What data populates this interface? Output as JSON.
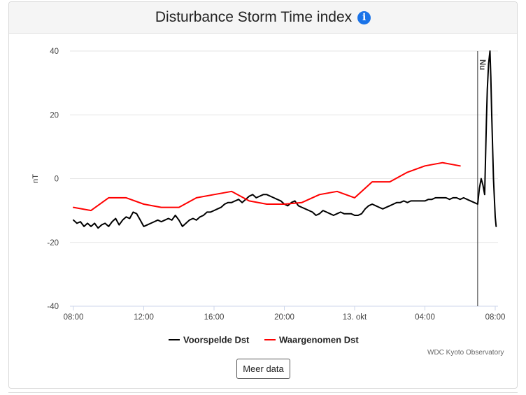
{
  "header": {
    "title": "Disturbance Storm Time index",
    "info_icon": "info-icon",
    "info_glyph": "i",
    "accent_color": "#1a73e8"
  },
  "chart_data": {
    "type": "line",
    "title": "Disturbance Storm Time index",
    "ylabel": "nT",
    "xlabel": "",
    "ylim": [
      -40,
      40
    ],
    "y_ticks": [
      40,
      20,
      0,
      -20,
      -40
    ],
    "x_unit": "hours since 08:00 on 12 okt",
    "xlim": [
      0,
      24.2
    ],
    "x_ticks": [
      {
        "x": 0,
        "label": "08:00"
      },
      {
        "x": 4,
        "label": "12:00"
      },
      {
        "x": 8,
        "label": "16:00"
      },
      {
        "x": 12,
        "label": "20:00"
      },
      {
        "x": 16,
        "label": "13. okt"
      },
      {
        "x": 20,
        "label": "04:00"
      },
      {
        "x": 24,
        "label": "08:00"
      }
    ],
    "grid": true,
    "legend_position": "bottom-center",
    "annotations": [
      {
        "type": "vertical-line",
        "x": 23.0,
        "label": "Nu"
      }
    ],
    "series": [
      {
        "name": "Voorspelde Dst",
        "color": "#000000",
        "points": [
          [
            0.0,
            -13.0
          ],
          [
            0.2,
            -14.0
          ],
          [
            0.4,
            -13.5
          ],
          [
            0.6,
            -15.0
          ],
          [
            0.8,
            -14.0
          ],
          [
            1.0,
            -15.0
          ],
          [
            1.2,
            -14.0
          ],
          [
            1.4,
            -15.5
          ],
          [
            1.6,
            -14.5
          ],
          [
            1.8,
            -14.0
          ],
          [
            2.0,
            -15.0
          ],
          [
            2.2,
            -13.5
          ],
          [
            2.4,
            -12.5
          ],
          [
            2.6,
            -14.5
          ],
          [
            2.8,
            -13.0
          ],
          [
            3.0,
            -12.0
          ],
          [
            3.2,
            -12.5
          ],
          [
            3.4,
            -10.5
          ],
          [
            3.6,
            -11.0
          ],
          [
            3.8,
            -13.0
          ],
          [
            4.0,
            -15.0
          ],
          [
            4.2,
            -14.5
          ],
          [
            4.4,
            -14.0
          ],
          [
            4.6,
            -13.5
          ],
          [
            4.8,
            -13.0
          ],
          [
            5.0,
            -13.5
          ],
          [
            5.2,
            -13.0
          ],
          [
            5.4,
            -12.5
          ],
          [
            5.6,
            -13.0
          ],
          [
            5.8,
            -11.5
          ],
          [
            6.0,
            -13.0
          ],
          [
            6.2,
            -15.0
          ],
          [
            6.4,
            -14.0
          ],
          [
            6.6,
            -13.0
          ],
          [
            6.8,
            -12.5
          ],
          [
            7.0,
            -13.0
          ],
          [
            7.2,
            -12.0
          ],
          [
            7.4,
            -11.5
          ],
          [
            7.6,
            -10.5
          ],
          [
            7.8,
            -10.5
          ],
          [
            8.0,
            -10.0
          ],
          [
            8.2,
            -9.5
          ],
          [
            8.4,
            -9.0
          ],
          [
            8.6,
            -8.0
          ],
          [
            8.8,
            -7.5
          ],
          [
            9.0,
            -7.5
          ],
          [
            9.2,
            -7.0
          ],
          [
            9.4,
            -6.5
          ],
          [
            9.6,
            -7.5
          ],
          [
            9.8,
            -6.5
          ],
          [
            10.0,
            -5.5
          ],
          [
            10.2,
            -5.0
          ],
          [
            10.4,
            -6.0
          ],
          [
            10.6,
            -5.5
          ],
          [
            10.8,
            -5.0
          ],
          [
            11.0,
            -5.0
          ],
          [
            11.2,
            -5.5
          ],
          [
            11.4,
            -6.0
          ],
          [
            11.6,
            -6.5
          ],
          [
            11.8,
            -7.0
          ],
          [
            12.0,
            -8.0
          ],
          [
            12.2,
            -8.5
          ],
          [
            12.4,
            -7.5
          ],
          [
            12.6,
            -7.0
          ],
          [
            12.8,
            -8.5
          ],
          [
            13.0,
            -9.0
          ],
          [
            13.2,
            -9.5
          ],
          [
            13.4,
            -10.0
          ],
          [
            13.6,
            -10.5
          ],
          [
            13.8,
            -11.5
          ],
          [
            14.0,
            -11.0
          ],
          [
            14.2,
            -10.0
          ],
          [
            14.4,
            -10.5
          ],
          [
            14.6,
            -11.0
          ],
          [
            14.8,
            -11.5
          ],
          [
            15.0,
            -11.0
          ],
          [
            15.2,
            -10.5
          ],
          [
            15.4,
            -11.0
          ],
          [
            15.6,
            -11.0
          ],
          [
            15.8,
            -11.0
          ],
          [
            16.0,
            -11.5
          ],
          [
            16.2,
            -11.5
          ],
          [
            16.4,
            -11.0
          ],
          [
            16.6,
            -9.5
          ],
          [
            16.8,
            -8.5
          ],
          [
            17.0,
            -8.0
          ],
          [
            17.2,
            -8.5
          ],
          [
            17.4,
            -9.0
          ],
          [
            17.6,
            -9.5
          ],
          [
            17.8,
            -9.0
          ],
          [
            18.0,
            -8.5
          ],
          [
            18.2,
            -8.0
          ],
          [
            18.4,
            -7.5
          ],
          [
            18.6,
            -7.5
          ],
          [
            18.8,
            -7.0
          ],
          [
            19.0,
            -7.5
          ],
          [
            19.2,
            -7.0
          ],
          [
            19.4,
            -7.0
          ],
          [
            19.6,
            -7.0
          ],
          [
            19.8,
            -7.0
          ],
          [
            20.0,
            -7.0
          ],
          [
            20.2,
            -6.5
          ],
          [
            20.4,
            -6.5
          ],
          [
            20.6,
            -6.0
          ],
          [
            20.8,
            -6.0
          ],
          [
            21.0,
            -6.0
          ],
          [
            21.2,
            -6.0
          ],
          [
            21.4,
            -6.5
          ],
          [
            21.6,
            -6.0
          ],
          [
            21.8,
            -6.0
          ],
          [
            22.0,
            -6.5
          ],
          [
            22.2,
            -6.0
          ],
          [
            22.4,
            -6.5
          ],
          [
            22.6,
            -7.0
          ],
          [
            22.8,
            -7.5
          ],
          [
            23.0,
            -8.0
          ],
          [
            23.1,
            -3.0
          ],
          [
            23.2,
            0.0
          ],
          [
            23.3,
            -2.0
          ],
          [
            23.4,
            -5.0
          ],
          [
            23.5,
            18.0
          ],
          [
            23.55,
            28.0
          ],
          [
            23.62,
            36.0
          ],
          [
            23.7,
            40.0
          ],
          [
            23.75,
            32.0
          ],
          [
            23.8,
            20.0
          ],
          [
            23.9,
            0.0
          ],
          [
            24.0,
            -12.0
          ],
          [
            24.05,
            -15.0
          ]
        ]
      },
      {
        "name": "Waargenomen Dst",
        "color": "#ff0000",
        "points": [
          [
            0.0,
            -9.0
          ],
          [
            1.0,
            -10.0
          ],
          [
            2.0,
            -6.0
          ],
          [
            3.0,
            -6.0
          ],
          [
            4.0,
            -8.0
          ],
          [
            5.0,
            -9.0
          ],
          [
            6.0,
            -9.0
          ],
          [
            7.0,
            -6.0
          ],
          [
            8.0,
            -5.0
          ],
          [
            9.0,
            -4.0
          ],
          [
            10.0,
            -7.0
          ],
          [
            11.0,
            -8.0
          ],
          [
            12.0,
            -8.0
          ],
          [
            13.0,
            -7.5
          ],
          [
            14.0,
            -5.0
          ],
          [
            15.0,
            -4.0
          ],
          [
            16.0,
            -6.0
          ],
          [
            17.0,
            -1.0
          ],
          [
            18.0,
            -1.0
          ],
          [
            19.0,
            2.0
          ],
          [
            20.0,
            4.0
          ],
          [
            21.0,
            5.0
          ],
          [
            22.0,
            4.0
          ]
        ]
      }
    ]
  },
  "legend": {
    "items": [
      {
        "label": "Voorspelde Dst",
        "color": "#000000"
      },
      {
        "label": "Waargenomen Dst",
        "color": "#ff0000"
      }
    ]
  },
  "credit": "WDC Kyoto Observatory",
  "more_button_label": "Meer data"
}
